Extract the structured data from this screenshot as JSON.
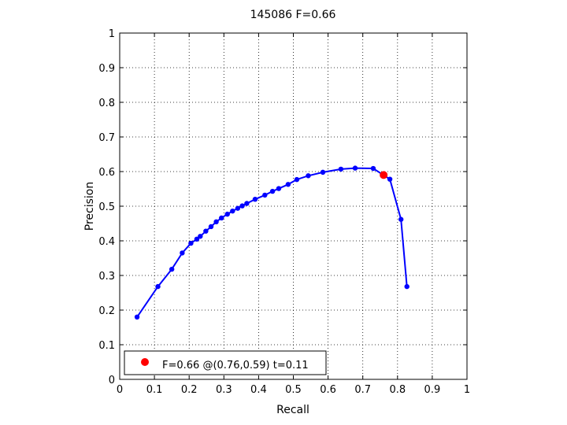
{
  "chart_data": {
    "type": "line",
    "title": "145086 F=0.66",
    "xlabel": "Recall",
    "ylabel": "Precision",
    "xlim": [
      0,
      1
    ],
    "ylim": [
      0,
      1
    ],
    "xticks": [
      "0",
      "0.1",
      "0.2",
      "0.3",
      "0.4",
      "0.5",
      "0.6",
      "0.7",
      "0.8",
      "0.9",
      "1"
    ],
    "yticks": [
      "0",
      "0.1",
      "0.2",
      "0.3",
      "0.4",
      "0.5",
      "0.6",
      "0.7",
      "0.8",
      "0.9",
      "1"
    ],
    "grid": true,
    "legend_position": "bottom-left",
    "series": [
      {
        "color": "#0000ff",
        "marker": "dot",
        "points": [
          [
            0.05,
            0.18
          ],
          [
            0.11,
            0.268
          ],
          [
            0.15,
            0.318
          ],
          [
            0.18,
            0.365
          ],
          [
            0.205,
            0.393
          ],
          [
            0.222,
            0.405
          ],
          [
            0.232,
            0.413
          ],
          [
            0.248,
            0.428
          ],
          [
            0.263,
            0.441
          ],
          [
            0.278,
            0.455
          ],
          [
            0.293,
            0.466
          ],
          [
            0.31,
            0.477
          ],
          [
            0.325,
            0.486
          ],
          [
            0.34,
            0.494
          ],
          [
            0.353,
            0.501
          ],
          [
            0.366,
            0.508
          ],
          [
            0.39,
            0.52
          ],
          [
            0.418,
            0.532
          ],
          [
            0.44,
            0.543
          ],
          [
            0.458,
            0.551
          ],
          [
            0.485,
            0.563
          ],
          [
            0.51,
            0.577
          ],
          [
            0.543,
            0.588
          ],
          [
            0.585,
            0.598
          ],
          [
            0.637,
            0.607
          ],
          [
            0.678,
            0.61
          ],
          [
            0.73,
            0.609
          ],
          [
            0.778,
            0.578
          ],
          [
            0.81,
            0.462
          ],
          [
            0.827,
            0.268
          ]
        ]
      }
    ],
    "best_point": {
      "recall": 0.76,
      "precision": 0.59,
      "color": "#ff0000",
      "label": "F=0.66 @(0.76,0.59) t=0.11"
    }
  }
}
